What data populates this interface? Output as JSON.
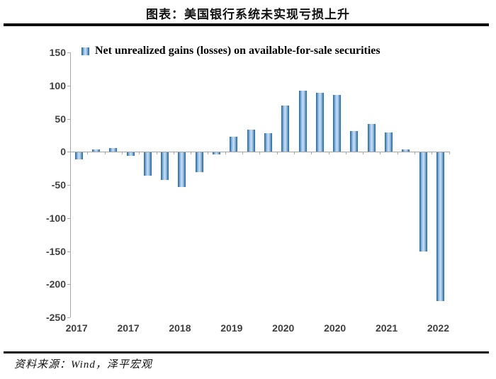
{
  "header": {
    "title": "图表：美国银行系统未实现亏损上升"
  },
  "chart_data": {
    "type": "bar",
    "legend": "Net unrealized gains (losses) on available-for-sale securities",
    "values": [
      -10,
      4,
      6,
      -5,
      -35,
      -41,
      -52,
      -30,
      -3,
      23,
      33,
      28,
      70,
      92,
      89,
      86,
      31,
      42,
      29,
      3,
      -149,
      -224
    ],
    "x_tick_labels": [
      "2017",
      "2017",
      "2018",
      "2019",
      "2020",
      "2020",
      "2021",
      "2022"
    ],
    "x_tick_slots": [
      0,
      3,
      6,
      9,
      12,
      15,
      18,
      21
    ],
    "y_ticks": [
      150,
      100,
      50,
      0,
      -50,
      -100,
      -150,
      -200,
      -250
    ],
    "ylim": [
      -250,
      150
    ],
    "grid": false,
    "legend_position": "top-left",
    "colors": {
      "bar_edge": "#2e75b6",
      "bar_center": "#cfe0f1",
      "axis": "#a6a6a6",
      "tick_text": "#3f3f3f"
    }
  },
  "footer": {
    "source": "资料来源：Wind，泽平宏观"
  }
}
